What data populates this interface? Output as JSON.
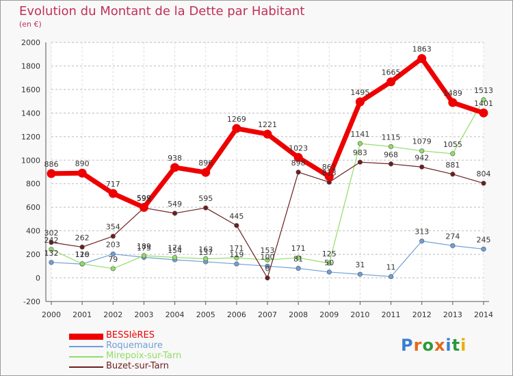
{
  "title": "Evolution du Montant de la Dette par Habitant",
  "subtitle": "(en €)",
  "logo": "Proxiti",
  "chart_data": {
    "type": "line",
    "title": "Evolution du Montant de la Dette par Habitant",
    "subtitle": "(en €)",
    "xlabel": "",
    "ylabel": "",
    "x": [
      "2000",
      "2001",
      "2002",
      "2003",
      "2004",
      "2005",
      "2006",
      "2007",
      "2008",
      "2009",
      "2010",
      "2011",
      "2012",
      "2013",
      "2014"
    ],
    "ylim": [
      -200,
      2000
    ],
    "yticks": [
      "-200",
      "0",
      "200",
      "400",
      "600",
      "800",
      "1000",
      "1200",
      "1400",
      "1600",
      "1800",
      "2000"
    ],
    "grid": "horizontal dashed",
    "legend_position": "bottom",
    "series": [
      {
        "name": "BESSIèRES",
        "color": "#ee0000",
        "values": [
          886,
          890,
          717,
          599,
          938,
          896,
          1269,
          1221,
          1023,
          861,
          1495,
          1665,
          1863,
          1489,
          1401
        ]
      },
      {
        "name": "Roquemaure",
        "color": "#6e9fd6",
        "values": [
          132,
          118,
          203,
          175,
          154,
          137,
          119,
          100,
          81,
          50,
          31,
          11,
          313,
          274,
          245
        ]
      },
      {
        "name": "Mirepoix-sur-Tarn",
        "color": "#90dd66",
        "values": [
          242,
          120,
          79,
          189,
          174,
          163,
          171,
          153,
          171,
          125,
          1141,
          1115,
          1079,
          1055,
          1513
        ]
      },
      {
        "name": "Buzet-sur-Tarn",
        "color": "#6b1e1e",
        "values": [
          302,
          262,
          354,
          595,
          549,
          595,
          445,
          0,
          898,
          813,
          983,
          968,
          942,
          881,
          804
        ]
      }
    ]
  }
}
